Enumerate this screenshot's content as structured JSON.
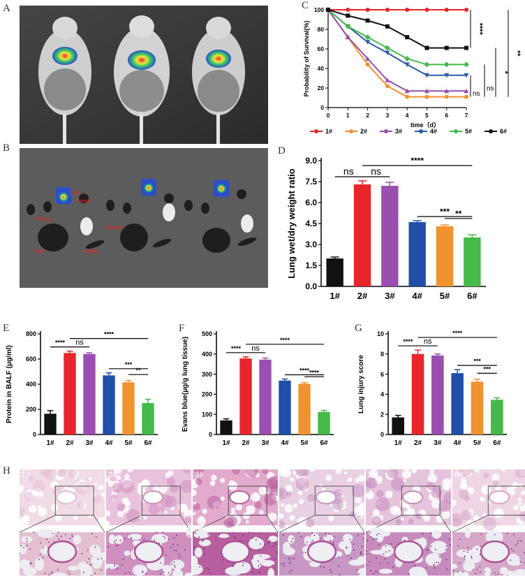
{
  "panels": {
    "A": "A",
    "B": "B",
    "C": "C",
    "D": "D",
    "E": "E",
    "F": "F",
    "G": "G",
    "H": "H"
  },
  "organ_labels": {
    "lung": "lung",
    "heart": "heart",
    "kidney": "kidney",
    "stomach": "stomach",
    "liver": "liver",
    "spleen": "spleen"
  },
  "chart_data": [
    {
      "id": "C",
      "type": "line",
      "xlabel": "time（d）",
      "ylabel": "Probability of Survival(%)",
      "xlim": [
        0,
        7
      ],
      "ylim": [
        0,
        100
      ],
      "xticks": [
        0,
        1,
        2,
        3,
        4,
        5,
        6,
        7
      ],
      "yticks": [
        0,
        20,
        40,
        60,
        80,
        100
      ],
      "series": [
        {
          "name": "1#",
          "color": "#e8252a",
          "x": [
            0,
            1,
            2,
            3,
            4,
            5,
            6,
            7
          ],
          "y": [
            100,
            100,
            100,
            100,
            100,
            100,
            100,
            100
          ]
        },
        {
          "name": "2#",
          "color": "#f0922e",
          "x": [
            0,
            1,
            2,
            3,
            4,
            5,
            6,
            7
          ],
          "y": [
            100,
            72,
            44,
            22,
            11,
            11,
            11,
            11
          ]
        },
        {
          "name": "3#",
          "color": "#9a4fb0",
          "x": [
            0,
            1,
            2,
            3,
            4,
            5,
            6,
            7
          ],
          "y": [
            100,
            72,
            50,
            28,
            17,
            17,
            17,
            17
          ]
        },
        {
          "name": "4#",
          "color": "#2a5ba8",
          "x": [
            0,
            1,
            2,
            3,
            4,
            5,
            6,
            7
          ],
          "y": [
            100,
            83,
            67,
            56,
            44,
            33,
            33,
            33
          ]
        },
        {
          "name": "5#",
          "color": "#46b94b",
          "x": [
            0,
            1,
            2,
            3,
            4,
            5,
            6,
            7
          ],
          "y": [
            100,
            83,
            72,
            61,
            50,
            44,
            44,
            44
          ]
        },
        {
          "name": "6#",
          "color": "#111111",
          "x": [
            0,
            1,
            2,
            3,
            4,
            5,
            6,
            7
          ],
          "y": [
            100,
            94,
            89,
            83,
            72,
            61,
            61,
            61
          ]
        }
      ],
      "annotations": [
        "****",
        "**",
        "*",
        "ns",
        "ns"
      ]
    },
    {
      "id": "D",
      "type": "bar",
      "ylabel": "Lung wet/dry weight ratio",
      "categories": [
        "1#",
        "2#",
        "3#",
        "4#",
        "5#",
        "6#"
      ],
      "values": [
        2.0,
        7.3,
        7.2,
        4.6,
        4.3,
        3.5
      ],
      "errors": [
        0.1,
        0.25,
        0.25,
        0.1,
        0.1,
        0.2
      ],
      "ylim": [
        0,
        9
      ],
      "yticks": [
        "0.0",
        "1.5",
        "3.0",
        "4.5",
        "6.0",
        "7.5",
        "9.0"
      ],
      "colors": [
        "#111111",
        "#e8252a",
        "#9a4fb0",
        "#1f4fa8",
        "#f0922e",
        "#46b94b"
      ],
      "annotations": [
        {
          "text": "ns",
          "from": 0,
          "to": 1,
          "level": 0
        },
        {
          "text": "ns",
          "from": 1,
          "to": 2,
          "level": 0
        },
        {
          "text": "****",
          "from": 1,
          "to": 5,
          "level": 1
        },
        {
          "text": "***",
          "from": 3,
          "to": 5,
          "level": 2
        },
        {
          "text": "**",
          "from": 4,
          "to": 5,
          "level": 3
        }
      ]
    },
    {
      "id": "E",
      "type": "bar",
      "ylabel": "Protein in BALF (μg/ml)",
      "categories": [
        "1#",
        "2#",
        "3#",
        "4#",
        "5#",
        "6#"
      ],
      "values": [
        165,
        648,
        640,
        470,
        415,
        250
      ],
      "errors": [
        25,
        15,
        10,
        20,
        15,
        30
      ],
      "ylim": [
        0,
        800
      ],
      "yticks": [
        "0",
        "200",
        "400",
        "600",
        "800"
      ],
      "colors": [
        "#111111",
        "#e8252a",
        "#9a4fb0",
        "#1f4fa8",
        "#f0922e",
        "#46b94b"
      ],
      "annotations": [
        {
          "text": "****",
          "from": 0,
          "to": 1,
          "level": 0
        },
        {
          "text": "ns",
          "from": 1,
          "to": 2,
          "level": 0
        },
        {
          "text": "****",
          "from": 1,
          "to": 5,
          "level": 1
        },
        {
          "text": "***",
          "from": 3,
          "to": 5,
          "level": 2
        },
        {
          "text": "**",
          "from": 4,
          "to": 5,
          "level": 3
        }
      ]
    },
    {
      "id": "F",
      "type": "bar",
      "ylabel": "Evans blue(μg/g lung tissue)",
      "categories": [
        "1#",
        "2#",
        "3#",
        "4#",
        "5#",
        "6#"
      ],
      "values": [
        70,
        378,
        372,
        268,
        252,
        112
      ],
      "errors": [
        8,
        8,
        8,
        8,
        6,
        8
      ],
      "ylim": [
        0,
        500
      ],
      "yticks": [
        "0",
        "100",
        "200",
        "300",
        "400",
        "500"
      ],
      "colors": [
        "#111111",
        "#e8252a",
        "#9a4fb0",
        "#1f4fa8",
        "#f0922e",
        "#46b94b"
      ],
      "annotations": [
        {
          "text": "****",
          "from": 0,
          "to": 1,
          "level": 0
        },
        {
          "text": "ns",
          "from": 1,
          "to": 2,
          "level": 0
        },
        {
          "text": "****",
          "from": 1,
          "to": 5,
          "level": 1
        },
        {
          "text": "****",
          "from": 3,
          "to": 5,
          "level": 2
        },
        {
          "text": "****",
          "from": 4,
          "to": 5,
          "level": 3
        }
      ]
    },
    {
      "id": "G",
      "type": "bar",
      "ylabel": "Lung injury score",
      "categories": [
        "1#",
        "2#",
        "3#",
        "4#",
        "5#",
        "6#"
      ],
      "values": [
        1.7,
        8.0,
        7.85,
        6.1,
        5.25,
        3.45
      ],
      "errors": [
        0.2,
        0.4,
        0.15,
        0.35,
        0.25,
        0.2
      ],
      "ylim": [
        0,
        10
      ],
      "yticks": [
        "0",
        "2",
        "4",
        "6",
        "8",
        "10"
      ],
      "colors": [
        "#111111",
        "#e8252a",
        "#9a4fb0",
        "#1f4fa8",
        "#f0922e",
        "#46b94b"
      ],
      "annotations": [
        {
          "text": "****",
          "from": 0,
          "to": 1,
          "level": 0
        },
        {
          "text": "ns",
          "from": 1,
          "to": 2,
          "level": 0
        },
        {
          "text": "****",
          "from": 1,
          "to": 5,
          "level": 1
        },
        {
          "text": "***",
          "from": 3,
          "to": 5,
          "level": 2
        },
        {
          "text": "***",
          "from": 4,
          "to": 5,
          "level": 3
        }
      ]
    }
  ],
  "histology": [
    {
      "label": "1#",
      "tone": "#f1dbe6",
      "dense": "#e4bfd1"
    },
    {
      "label": "2#",
      "tone": "#e9c3db",
      "dense": "#cf8fbf"
    },
    {
      "label": "3#",
      "tone": "#e2aacd",
      "dense": "#b8609f"
    },
    {
      "label": "4#",
      "tone": "#ead0e3",
      "dense": "#c997c3"
    },
    {
      "label": "5#",
      "tone": "#e6c3dc",
      "dense": "#c68bbc"
    },
    {
      "label": "6#",
      "tone": "#f0d6e4",
      "dense": "#d6a7c8"
    }
  ]
}
